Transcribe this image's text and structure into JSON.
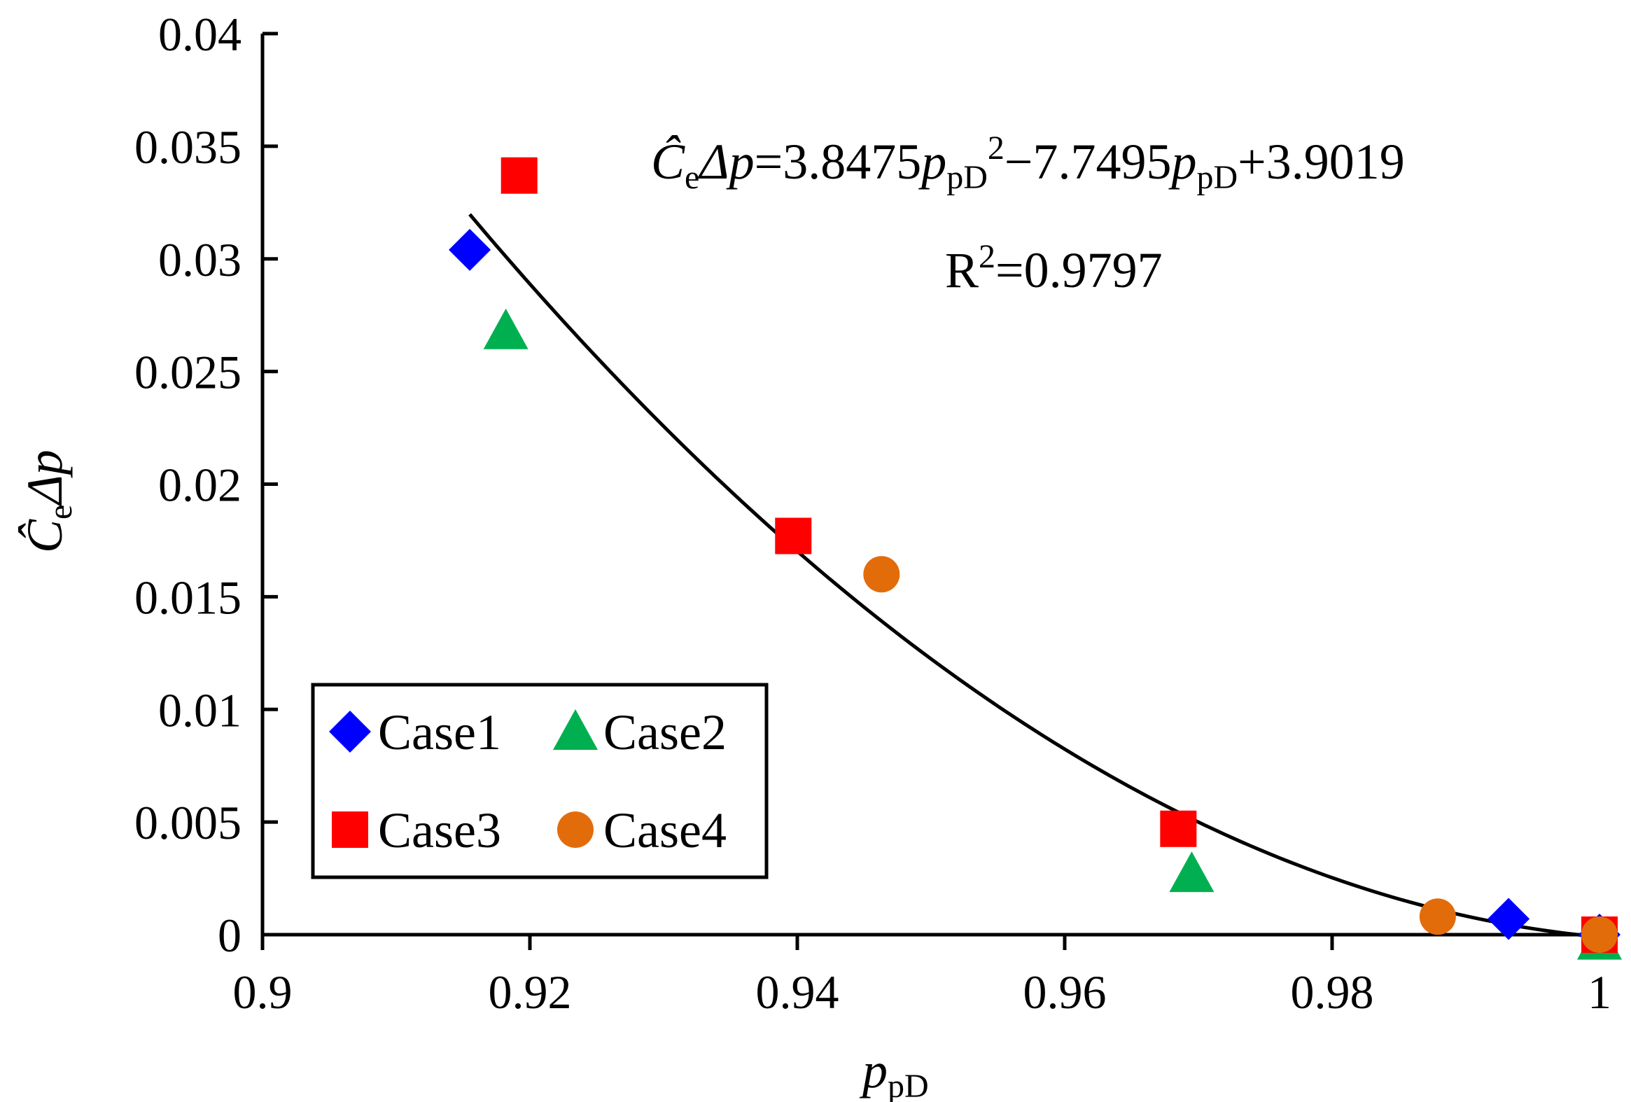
{
  "chart_data": {
    "type": "scatter",
    "title": "",
    "xlabel": "p_pD",
    "ylabel": "Ĉ_e Δp",
    "xlim": [
      0.9,
      1.0
    ],
    "ylim": [
      0,
      0.04
    ],
    "x_ticks": [
      0.9,
      0.92,
      0.94,
      0.96,
      0.98,
      1.0
    ],
    "x_tick_labels": [
      "0.9",
      "0.92",
      "0.94",
      "0.96",
      "0.98",
      "1"
    ],
    "y_ticks": [
      0,
      0.005,
      0.01,
      0.015,
      0.02,
      0.025,
      0.03,
      0.035,
      0.04
    ],
    "y_tick_labels": [
      "0",
      "0.005",
      "0.01",
      "0.015",
      "0.02",
      "0.025",
      "0.03",
      "0.035",
      "0.04"
    ],
    "grid": false,
    "legend_position": "bottom-left",
    "series": [
      {
        "name": "Case1",
        "marker": "diamond",
        "color": "#0000FF",
        "points": [
          [
            0.9155,
            0.0304
          ],
          [
            0.9932,
            0.0007
          ],
          [
            1.0,
            0.0
          ]
        ]
      },
      {
        "name": "Case2",
        "marker": "triangle",
        "color": "#00B050",
        "points": [
          [
            0.9182,
            0.0268
          ],
          [
            0.9695,
            0.0027
          ],
          [
            1.0,
            -0.0003
          ]
        ]
      },
      {
        "name": "Case3",
        "marker": "square",
        "color": "#FF0000",
        "points": [
          [
            0.9192,
            0.0337
          ],
          [
            0.9397,
            0.0177
          ],
          [
            0.9685,
            0.0047
          ],
          [
            1.0,
            0.0
          ]
        ]
      },
      {
        "name": "Case4",
        "marker": "circle",
        "color": "#E36C0A",
        "points": [
          [
            0.9463,
            0.016
          ],
          [
            0.9879,
            0.0008
          ],
          [
            1.0,
            0.0
          ]
        ]
      }
    ],
    "fit": {
      "a": 3.8475,
      "b": -7.7495,
      "c": 3.9019,
      "x_range": [
        0.9155,
        1.0
      ],
      "color": "#000000"
    },
    "annotations": {
      "equation": {
        "lhs_base": "Ĉ",
        "lhs_sub": "e",
        "lhs_rest": "Δp",
        "eq_part1": "=3.8475",
        "var": "p",
        "var_sub": "pD",
        "sup": "2",
        "eq_part2": "−7.7495",
        "eq_part3": "+3.9019"
      },
      "r2": {
        "base": "R",
        "sup": "2",
        "value": "=0.9797"
      }
    },
    "axis_labels": {
      "x_var": "p",
      "x_sub": "pD",
      "y_base": "Ĉ",
      "y_sub": "e",
      "y_rest": "Δp"
    }
  }
}
